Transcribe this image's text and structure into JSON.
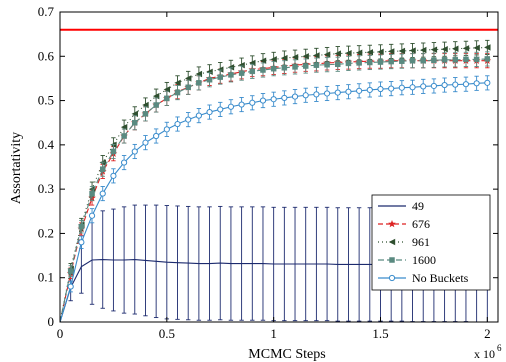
{
  "chart_data": {
    "type": "line",
    "title": "",
    "xlabel": "MCMC Steps",
    "ylabel": "Assortativity",
    "x_multiplier_label": "x 10",
    "x_multiplier_exponent": "6",
    "xlim": [
      0,
      2.05
    ],
    "ylim": [
      0,
      0.7
    ],
    "xticks": [
      {
        "value": 0,
        "label": "0"
      },
      {
        "value": 0.5,
        "label": "0.5"
      },
      {
        "value": 1,
        "label": "1"
      },
      {
        "value": 1.5,
        "label": "1.5"
      },
      {
        "value": 2,
        "label": "2"
      }
    ],
    "yticks": [
      {
        "value": 0,
        "label": "0"
      },
      {
        "value": 0.1,
        "label": "0.1"
      },
      {
        "value": 0.2,
        "label": "0.2"
      },
      {
        "value": 0.3,
        "label": "0.3"
      },
      {
        "value": 0.4,
        "label": "0.4"
      },
      {
        "value": 0.5,
        "label": "0.5"
      },
      {
        "value": 0.6,
        "label": "0.6"
      },
      {
        "value": 0.7,
        "label": "0.7"
      }
    ],
    "grid": false,
    "legend_position": "right",
    "reference_line": {
      "y": 0.66,
      "color": "#ff0000"
    },
    "x_step": 0.05,
    "series": [
      {
        "name": "49",
        "color": "#1c2a6e",
        "dash": "",
        "marker": "none",
        "values": [
          0,
          0.078,
          0.125,
          0.14,
          0.141,
          0.14,
          0.14,
          0.141,
          0.139,
          0.137,
          0.135,
          0.134,
          0.133,
          0.132,
          0.132,
          0.133,
          0.132,
          0.132,
          0.132,
          0.132,
          0.131,
          0.131,
          0.131,
          0.131,
          0.131,
          0.131,
          0.13,
          0.13,
          0.13,
          0.13,
          0.13,
          0.13,
          0.13,
          0.129,
          0.129,
          0.129,
          0.129,
          0.129,
          0.129,
          0.128,
          0.128
        ],
        "errors": [
          0,
          0.03,
          0.06,
          0.1,
          0.11,
          0.115,
          0.12,
          0.123,
          0.125,
          0.127,
          0.128,
          0.128,
          0.128,
          0.128,
          0.128,
          0.128,
          0.128,
          0.128,
          0.128,
          0.128,
          0.128,
          0.128,
          0.128,
          0.128,
          0.128,
          0.128,
          0.128,
          0.128,
          0.128,
          0.128,
          0.128,
          0.128,
          0.128,
          0.128,
          0.128,
          0.128,
          0.128,
          0.128,
          0.128,
          0.128,
          0.128
        ]
      },
      {
        "name": "676",
        "color": "#dd2222",
        "dash": "5,3",
        "marker": "star",
        "values": [
          0,
          0.11,
          0.21,
          0.28,
          0.34,
          0.38,
          0.42,
          0.45,
          0.47,
          0.49,
          0.505,
          0.52,
          0.53,
          0.54,
          0.55,
          0.555,
          0.56,
          0.565,
          0.57,
          0.572,
          0.575,
          0.577,
          0.58,
          0.582,
          0.583,
          0.585,
          0.586,
          0.587,
          0.588,
          0.589,
          0.589,
          0.59,
          0.59,
          0.59,
          0.59,
          0.59,
          0.59,
          0.59,
          0.59,
          0.59,
          0.59
        ],
        "errors": [
          0,
          0.012,
          0.014,
          0.016,
          0.016,
          0.016,
          0.016,
          0.016,
          0.016,
          0.016,
          0.016,
          0.016,
          0.016,
          0.016,
          0.016,
          0.016,
          0.016,
          0.016,
          0.016,
          0.016,
          0.016,
          0.016,
          0.016,
          0.016,
          0.016,
          0.016,
          0.016,
          0.016,
          0.016,
          0.016,
          0.016,
          0.016,
          0.016,
          0.016,
          0.016,
          0.016,
          0.016,
          0.016,
          0.016,
          0.016,
          0.016
        ]
      },
      {
        "name": "961",
        "color": "#2f4f2f",
        "dash": "1,3",
        "marker": "triangle-left",
        "values": [
          0,
          0.12,
          0.22,
          0.3,
          0.36,
          0.4,
          0.44,
          0.47,
          0.49,
          0.51,
          0.525,
          0.54,
          0.55,
          0.56,
          0.565,
          0.57,
          0.575,
          0.58,
          0.585,
          0.59,
          0.593,
          0.596,
          0.598,
          0.6,
          0.602,
          0.604,
          0.606,
          0.607,
          0.608,
          0.609,
          0.61,
          0.611,
          0.612,
          0.613,
          0.614,
          0.615,
          0.616,
          0.617,
          0.618,
          0.619,
          0.62
        ],
        "errors": [
          0,
          0.012,
          0.014,
          0.016,
          0.016,
          0.016,
          0.016,
          0.016,
          0.016,
          0.016,
          0.016,
          0.016,
          0.016,
          0.016,
          0.016,
          0.016,
          0.016,
          0.016,
          0.016,
          0.016,
          0.016,
          0.016,
          0.016,
          0.016,
          0.016,
          0.016,
          0.016,
          0.016,
          0.016,
          0.016,
          0.016,
          0.016,
          0.016,
          0.016,
          0.016,
          0.016,
          0.016,
          0.016,
          0.016,
          0.016,
          0.016
        ]
      },
      {
        "name": "1600",
        "color": "#5a8a80",
        "dash": "6,3",
        "marker": "square",
        "values": [
          0,
          0.115,
          0.215,
          0.29,
          0.345,
          0.385,
          0.42,
          0.45,
          0.47,
          0.49,
          0.505,
          0.518,
          0.53,
          0.54,
          0.547,
          0.553,
          0.558,
          0.562,
          0.566,
          0.569,
          0.572,
          0.574,
          0.576,
          0.578,
          0.58,
          0.581,
          0.582,
          0.584,
          0.585,
          0.586,
          0.587,
          0.588,
          0.589,
          0.59,
          0.59,
          0.591,
          0.592,
          0.592,
          0.593,
          0.593,
          0.594
        ],
        "errors": [
          0,
          0.012,
          0.014,
          0.016,
          0.016,
          0.016,
          0.016,
          0.016,
          0.016,
          0.016,
          0.016,
          0.016,
          0.016,
          0.016,
          0.016,
          0.016,
          0.016,
          0.016,
          0.016,
          0.016,
          0.016,
          0.016,
          0.016,
          0.016,
          0.016,
          0.016,
          0.016,
          0.016,
          0.016,
          0.016,
          0.016,
          0.016,
          0.016,
          0.016,
          0.016,
          0.016,
          0.016,
          0.016,
          0.016,
          0.016,
          0.016
        ]
      },
      {
        "name": "No Buckets",
        "color": "#3a8ccc",
        "dash": "",
        "marker": "circle",
        "values": [
          0,
          0.08,
          0.18,
          0.24,
          0.29,
          0.33,
          0.36,
          0.385,
          0.405,
          0.42,
          0.435,
          0.447,
          0.457,
          0.466,
          0.474,
          0.48,
          0.486,
          0.491,
          0.495,
          0.5,
          0.503,
          0.506,
          0.509,
          0.512,
          0.514,
          0.516,
          0.518,
          0.52,
          0.522,
          0.524,
          0.526,
          0.527,
          0.529,
          0.53,
          0.532,
          0.533,
          0.535,
          0.536,
          0.537,
          0.539,
          0.54
        ],
        "errors": [
          0,
          0.012,
          0.014,
          0.016,
          0.016,
          0.016,
          0.016,
          0.016,
          0.016,
          0.016,
          0.016,
          0.016,
          0.016,
          0.016,
          0.016,
          0.016,
          0.016,
          0.016,
          0.016,
          0.016,
          0.016,
          0.016,
          0.016,
          0.016,
          0.016,
          0.016,
          0.016,
          0.016,
          0.016,
          0.016,
          0.016,
          0.016,
          0.016,
          0.016,
          0.016,
          0.016,
          0.016,
          0.016,
          0.016,
          0.016,
          0.016
        ]
      }
    ]
  }
}
